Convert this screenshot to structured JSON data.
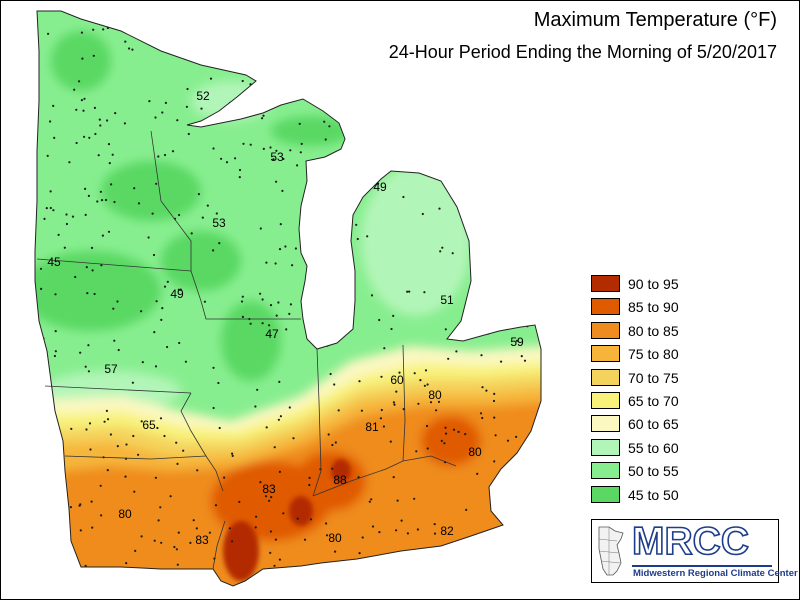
{
  "title": "Maximum Temperature (°F)",
  "subtitle": "24-Hour Period Ending the Morning of 5/20/2017",
  "legend": [
    {
      "label": "90 to 95",
      "color": "#b32c00"
    },
    {
      "label": "85 to 90",
      "color": "#e05a00"
    },
    {
      "label": "80 to 85",
      "color": "#ef8c1f"
    },
    {
      "label": "75 to 80",
      "color": "#f6b53a"
    },
    {
      "label": "70 to 75",
      "color": "#f4d35c"
    },
    {
      "label": "65 to 70",
      "color": "#f8f27b"
    },
    {
      "label": "60 to 65",
      "color": "#fbf8c2"
    },
    {
      "label": "55 to 60",
      "color": "#b2f5b8"
    },
    {
      "label": "50 to 55",
      "color": "#87ee8f"
    },
    {
      "label": "45 to 50",
      "color": "#5ad863"
    }
  ],
  "station_values": [
    "52",
    "53",
    "49",
    "53",
    "45",
    "49",
    "47",
    "51",
    "59",
    "57",
    "60",
    "65",
    "80",
    "81",
    "80",
    "88",
    "83",
    "80",
    "82",
    "83",
    "80"
  ],
  "logo": {
    "name": "MRCC",
    "full_name": "Midwestern Regional Climate Center"
  }
}
